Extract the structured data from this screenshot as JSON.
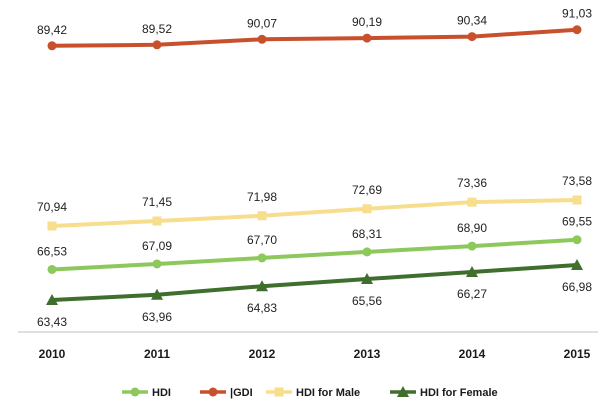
{
  "chart_data": {
    "type": "line",
    "title": "",
    "xlabel": "",
    "ylabel": "",
    "categories": [
      "2010",
      "2011",
      "2012",
      "2013",
      "2014",
      "2015"
    ],
    "ylim": [
      60,
      92
    ],
    "grid": false,
    "legend_position": "bottom",
    "series": [
      {
        "name": "HDI",
        "values": [
          66.53,
          67.09,
          67.7,
          68.31,
          68.9,
          69.55
        ],
        "labels": [
          "66,53",
          "67,09",
          "67,70",
          "68,31",
          "68,90",
          "69,55"
        ],
        "color": "#8dc85d",
        "marker": "circle"
      },
      {
        "name": "|GDI",
        "values": [
          89.42,
          89.52,
          90.07,
          90.19,
          90.34,
          91.03
        ],
        "labels": [
          "89,42",
          "89,52",
          "90,07",
          "90,19",
          "90,34",
          "91,03"
        ],
        "color": "#c8502d",
        "marker": "circle"
      },
      {
        "name": "HDI for Male",
        "values": [
          70.94,
          71.45,
          71.98,
          72.69,
          73.36,
          73.58
        ],
        "labels": [
          "70,94",
          "71,45",
          "71,98",
          "72,69",
          "73,36",
          "73,58"
        ],
        "color": "#f7de8c",
        "marker": "square"
      },
      {
        "name": "HDI for Female",
        "values": [
          63.43,
          63.96,
          64.83,
          65.56,
          66.27,
          66.98
        ],
        "labels": [
          "63,43",
          "63,96",
          "64,83",
          "65,56",
          "66,27",
          "66,98"
        ],
        "color": "#3f6e2d",
        "marker": "triangle"
      }
    ]
  }
}
